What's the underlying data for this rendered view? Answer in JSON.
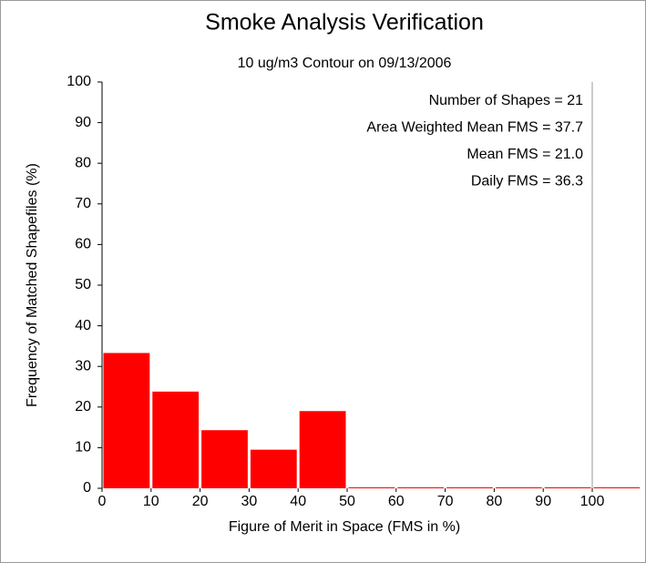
{
  "chart_data": {
    "type": "histogram",
    "title": "Smoke Analysis Verification",
    "subtitle": "10 ug/m3 Contour on 09/13/2006",
    "x_label": "Figure of Merit in Space (FMS in %)",
    "y_label": "Frequency of Matched Shapefiles (%)",
    "annotations": [
      "Number of Shapes = 21",
      "Area Weighted Mean FMS = 37.7",
      "Mean FMS = 21.0",
      "Daily FMS = 36.3"
    ],
    "bins": [
      0,
      10,
      20,
      30,
      40,
      50,
      60,
      70,
      80,
      90,
      100,
      110
    ],
    "values": [
      33.3,
      23.8,
      14.3,
      9.5,
      19.0,
      0,
      0,
      0,
      0,
      0,
      0
    ],
    "color": "#ff0000",
    "xlim": [
      0,
      100
    ],
    "xticks": [
      0,
      10,
      20,
      30,
      40,
      50,
      60,
      70,
      80,
      90,
      100
    ],
    "ylim": [
      0,
      100
    ],
    "yticks": [
      0,
      10,
      20,
      30,
      40,
      50,
      60,
      70,
      80,
      90,
      100
    ],
    "grid": false
  }
}
